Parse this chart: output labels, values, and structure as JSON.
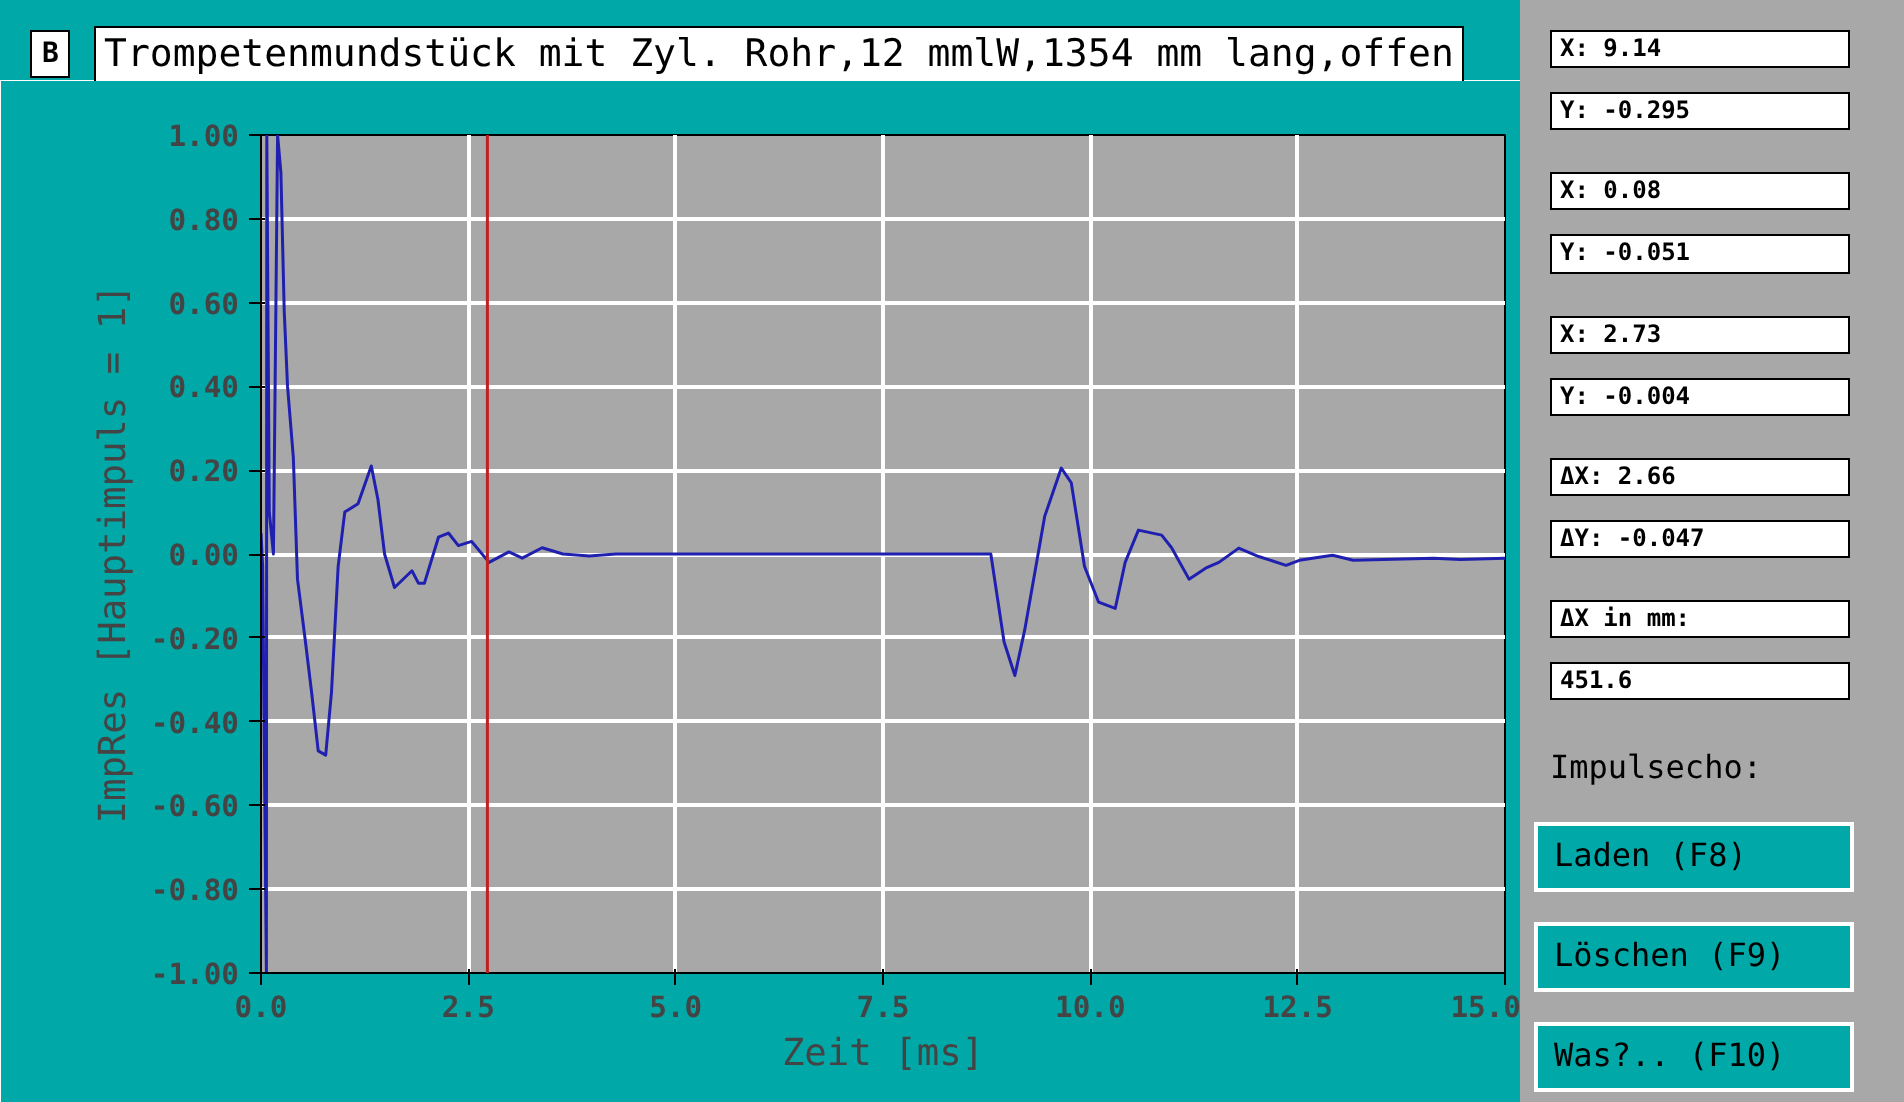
{
  "chart_data": {
    "type": "line",
    "title": "Trompetenmundstück mit Zyl. Rohr,12 mmlW,1354 mm lang,offen",
    "xlabel": "Zeit [ms]",
    "ylabel": "ImpRes [Hauptimpuls = 1]",
    "xlim": [
      0,
      15
    ],
    "ylim": [
      -1,
      1
    ],
    "xticks": [
      {
        "value": 0,
        "label": "0.0"
      },
      {
        "value": 2.5,
        "label": "2.5"
      },
      {
        "value": 5,
        "label": "5.0"
      },
      {
        "value": 7.5,
        "label": "7.5"
      },
      {
        "value": 10,
        "label": "10.0"
      },
      {
        "value": 12.5,
        "label": "12.5"
      },
      {
        "value": 15,
        "label": "15.0"
      }
    ],
    "yticks": [
      {
        "value": 1,
        "label": "1.00"
      },
      {
        "value": 0.8,
        "label": "0.80"
      },
      {
        "value": 0.6,
        "label": "0.60"
      },
      {
        "value": 0.4,
        "label": "0.40"
      },
      {
        "value": 0.2,
        "label": "0.20"
      },
      {
        "value": 0,
        "label": "0.00"
      },
      {
        "value": -0.2,
        "label": "-0.20"
      },
      {
        "value": -0.4,
        "label": "-0.40"
      },
      {
        "value": -0.6,
        "label": "-0.60"
      },
      {
        "value": -0.8,
        "label": "-0.80"
      },
      {
        "value": -1,
        "label": "-1.00"
      }
    ],
    "grid": true,
    "line_style": "solid",
    "marker": "none",
    "ref_lines": [
      {
        "axis": "x",
        "value": 2.73,
        "label": null,
        "color": "#c02020"
      }
    ],
    "annotations": [
      "B",
      "X: 9.14",
      "Y: -0.295",
      "X: 0.08",
      "Y: -0.051",
      "X: 2.73",
      "Y: -0.004",
      "ΔX: 2.66",
      "ΔY: -0.047",
      "ΔX in mm:",
      "451.6",
      "Impulsecho:",
      "Laden (F8)",
      "Löschen (F9)",
      "Was?.. (F10)"
    ],
    "series": [
      {
        "color": "#2020b0",
        "x": [
          0,
          0.02,
          0.065,
          0.07,
          0.1,
          0.15,
          0.2,
          0.24,
          0.28,
          0.32,
          0.39,
          0.44,
          0.53,
          0.61,
          0.69,
          0.78,
          0.85,
          0.93,
          1.01,
          1.17,
          1.33,
          1.41,
          1.49,
          1.61,
          1.82,
          1.9,
          1.97,
          2.14,
          2.26,
          2.38,
          2.54,
          2.75,
          2.99,
          3.15,
          3.39,
          3.64,
          3.96,
          4.28,
          6,
          8.8,
          8.96,
          9.09,
          9.21,
          9.45,
          9.65,
          9.77,
          9.93,
          10.1,
          10.3,
          10.42,
          10.58,
          10.86,
          10.98,
          11.19,
          11.39,
          11.55,
          11.79,
          12.03,
          12.36,
          12.52,
          12.92,
          13.17,
          14.14,
          14.46,
          15
        ],
        "values": [
          0.05,
          -0.03,
          -1.0,
          1.0,
          0.1,
          0.0,
          1.0,
          0.91,
          0.58,
          0.4,
          0.23,
          -0.06,
          -0.2,
          -0.33,
          -0.47,
          -0.48,
          -0.33,
          -0.03,
          0.1,
          0.12,
          0.21,
          0.13,
          0.0,
          -0.08,
          -0.04,
          -0.07,
          -0.07,
          0.04,
          0.05,
          0.02,
          0.03,
          -0.02,
          0.005,
          -0.01,
          0.015,
          0.0,
          -0.005,
          0.0,
          0.0,
          0.0,
          -0.21,
          -0.29,
          -0.18,
          0.09,
          0.205,
          0.17,
          -0.03,
          -0.115,
          -0.13,
          -0.02,
          0.057,
          0.045,
          0.015,
          -0.06,
          -0.034,
          -0.02,
          0.014,
          -0.006,
          -0.027,
          -0.015,
          -0.003,
          -0.015,
          -0.01,
          -0.013,
          -0.01
        ]
      }
    ]
  }
}
